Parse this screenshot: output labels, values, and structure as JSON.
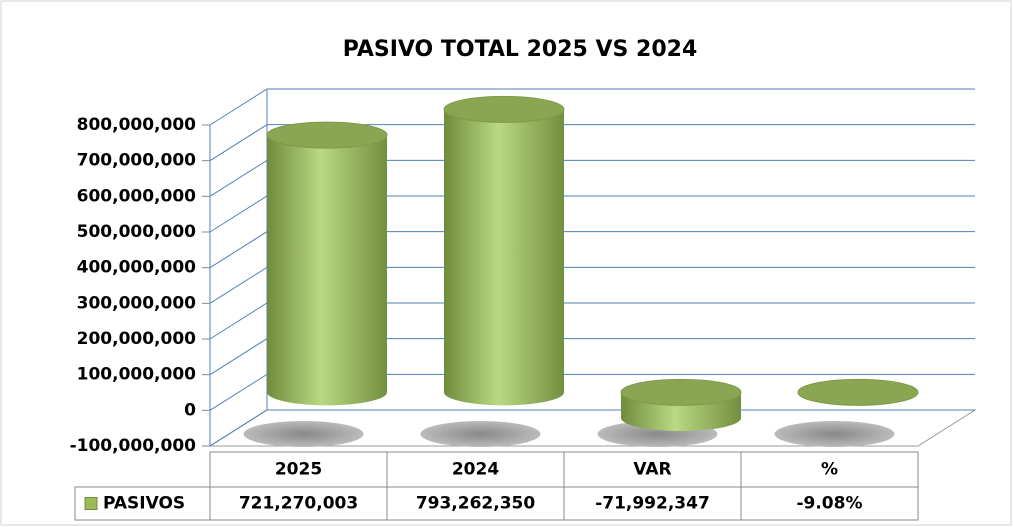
{
  "chart_data": {
    "type": "cylinder-bar",
    "title": "PASIVO TOTAL 2025 VS 2024",
    "categories": [
      "2025",
      "2024",
      "VAR",
      "%"
    ],
    "series": [
      {
        "name": "PASIVOS",
        "color": "#9bbb59",
        "values": [
          721270003,
          793262350,
          -71992347,
          -9.08
        ],
        "value_labels": [
          "721,270,003",
          "793,262,350",
          "-71,992,347",
          "-9.08%"
        ]
      }
    ],
    "ylim": [
      -100000000,
      800000000
    ],
    "yticks": [
      {
        "value": -100000000,
        "label": "-100,000,000"
      },
      0,
      {
        "value": 100000000,
        "label": "100,000,000"
      },
      {
        "value": 200000000,
        "label": "200,000,000"
      },
      {
        "value": 300000000,
        "label": "300,000,000"
      },
      {
        "value": 400000000,
        "label": "400,000,000"
      },
      {
        "value": 500000000,
        "label": "500,000,000"
      },
      {
        "value": 600000000,
        "label": "600,000,000"
      },
      {
        "value": 700000000,
        "label": "700,000,000"
      },
      {
        "value": 800000000,
        "label": "800,000,000"
      }
    ],
    "grid": true
  }
}
